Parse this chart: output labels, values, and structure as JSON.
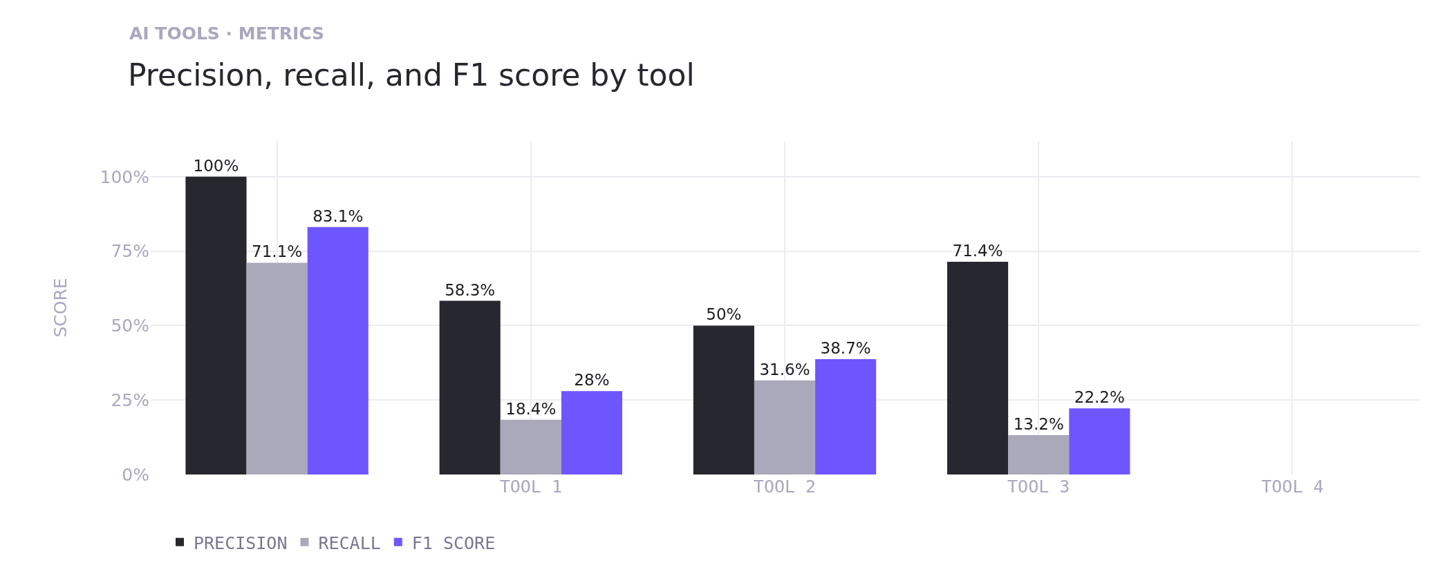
{
  "chart_data": {
    "type": "bar",
    "title": "Precision, recall, and F1 score by tool",
    "subtitle": "AI TOOLS · METRICS",
    "ylabel": "SCORE",
    "categories": [
      null,
      "TOOL 1",
      "TOOL 2",
      "TOOL 3",
      "TOOL 4"
    ],
    "series": [
      {
        "name": "PRECISION",
        "color": "#27272f",
        "values": [
          100,
          58.3,
          50,
          71.4,
          null
        ],
        "value_labels": [
          "100%",
          "58.3%",
          "50%",
          "71.4%",
          null
        ]
      },
      {
        "name": "RECALL",
        "color": "#a9a9bb",
        "values": [
          71.1,
          18.4,
          31.6,
          13.2,
          null
        ],
        "value_labels": [
          "71.1%",
          "18.4%",
          "31.6%",
          "13.2%",
          null
        ]
      },
      {
        "name": "F1 SCORE",
        "color": "#6e56ff",
        "values": [
          83.1,
          28,
          38.7,
          22.2,
          null
        ],
        "value_labels": [
          "83.1%",
          "28%",
          "38.7%",
          "22.2%",
          null
        ]
      }
    ],
    "ylim": [
      0,
      112
    ],
    "yticks": [
      {
        "value": 0,
        "label": "0%"
      },
      {
        "value": 25,
        "label": "25%"
      },
      {
        "value": 50,
        "label": "50%"
      },
      {
        "value": 75,
        "label": "75%"
      },
      {
        "value": 100,
        "label": "100%"
      }
    ],
    "grid": true,
    "legend": "bottom left"
  }
}
